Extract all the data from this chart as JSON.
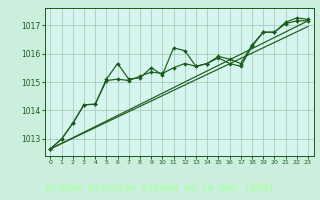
{
  "bg_color": "#cceedd",
  "plot_bg_color": "#d6f5ee",
  "grid_color": "#aaccbb",
  "line_color": "#1a5c1a",
  "xlabel": "Graphe pression niveau de la mer (hPa)",
  "xlabel_fontsize": 7.5,
  "xlabel_bg": "#2d6b2d",
  "xlabel_fg": "#ccffcc",
  "ylim": [
    1012.4,
    1017.6
  ],
  "xlim": [
    -0.5,
    23.5
  ],
  "yticks": [
    1013,
    1014,
    1015,
    1016,
    1017
  ],
  "xticks": [
    0,
    1,
    2,
    3,
    4,
    5,
    6,
    7,
    8,
    9,
    10,
    11,
    12,
    13,
    14,
    15,
    16,
    17,
    18,
    19,
    20,
    21,
    22,
    23
  ],
  "series1_x": [
    0,
    1,
    2,
    3,
    4,
    5,
    6,
    7,
    8,
    9,
    10,
    11,
    12,
    13,
    14,
    15,
    16,
    17,
    18,
    19,
    20,
    21,
    22,
    23
  ],
  "series1_y": [
    1012.65,
    1013.0,
    1013.55,
    1014.2,
    1014.22,
    1015.1,
    1015.65,
    1015.1,
    1015.15,
    1015.5,
    1015.25,
    1016.2,
    1016.1,
    1015.55,
    1015.65,
    1015.9,
    1015.8,
    1015.65,
    1016.3,
    1016.75,
    1016.75,
    1017.1,
    1017.25,
    1017.2
  ],
  "series2_x": [
    0,
    1,
    2,
    3,
    4,
    5,
    6,
    7,
    8,
    9,
    10,
    11,
    12,
    13,
    14,
    15,
    16,
    17,
    18,
    19,
    20,
    21,
    22,
    23
  ],
  "series2_y": [
    1012.65,
    1013.0,
    1013.55,
    1014.2,
    1014.22,
    1015.05,
    1015.1,
    1015.05,
    1015.2,
    1015.35,
    1015.3,
    1015.5,
    1015.65,
    1015.55,
    1015.65,
    1015.85,
    1015.65,
    1015.55,
    1016.25,
    1016.75,
    1016.75,
    1017.05,
    1017.15,
    1017.15
  ],
  "trend1_x": [
    0,
    23
  ],
  "trend1_y": [
    1012.65,
    1017.15
  ],
  "trend2_x": [
    0,
    23
  ],
  "trend2_y": [
    1012.65,
    1016.95
  ],
  "tick_color": "#1a5c1a",
  "spine_color": "#1a5c1a"
}
